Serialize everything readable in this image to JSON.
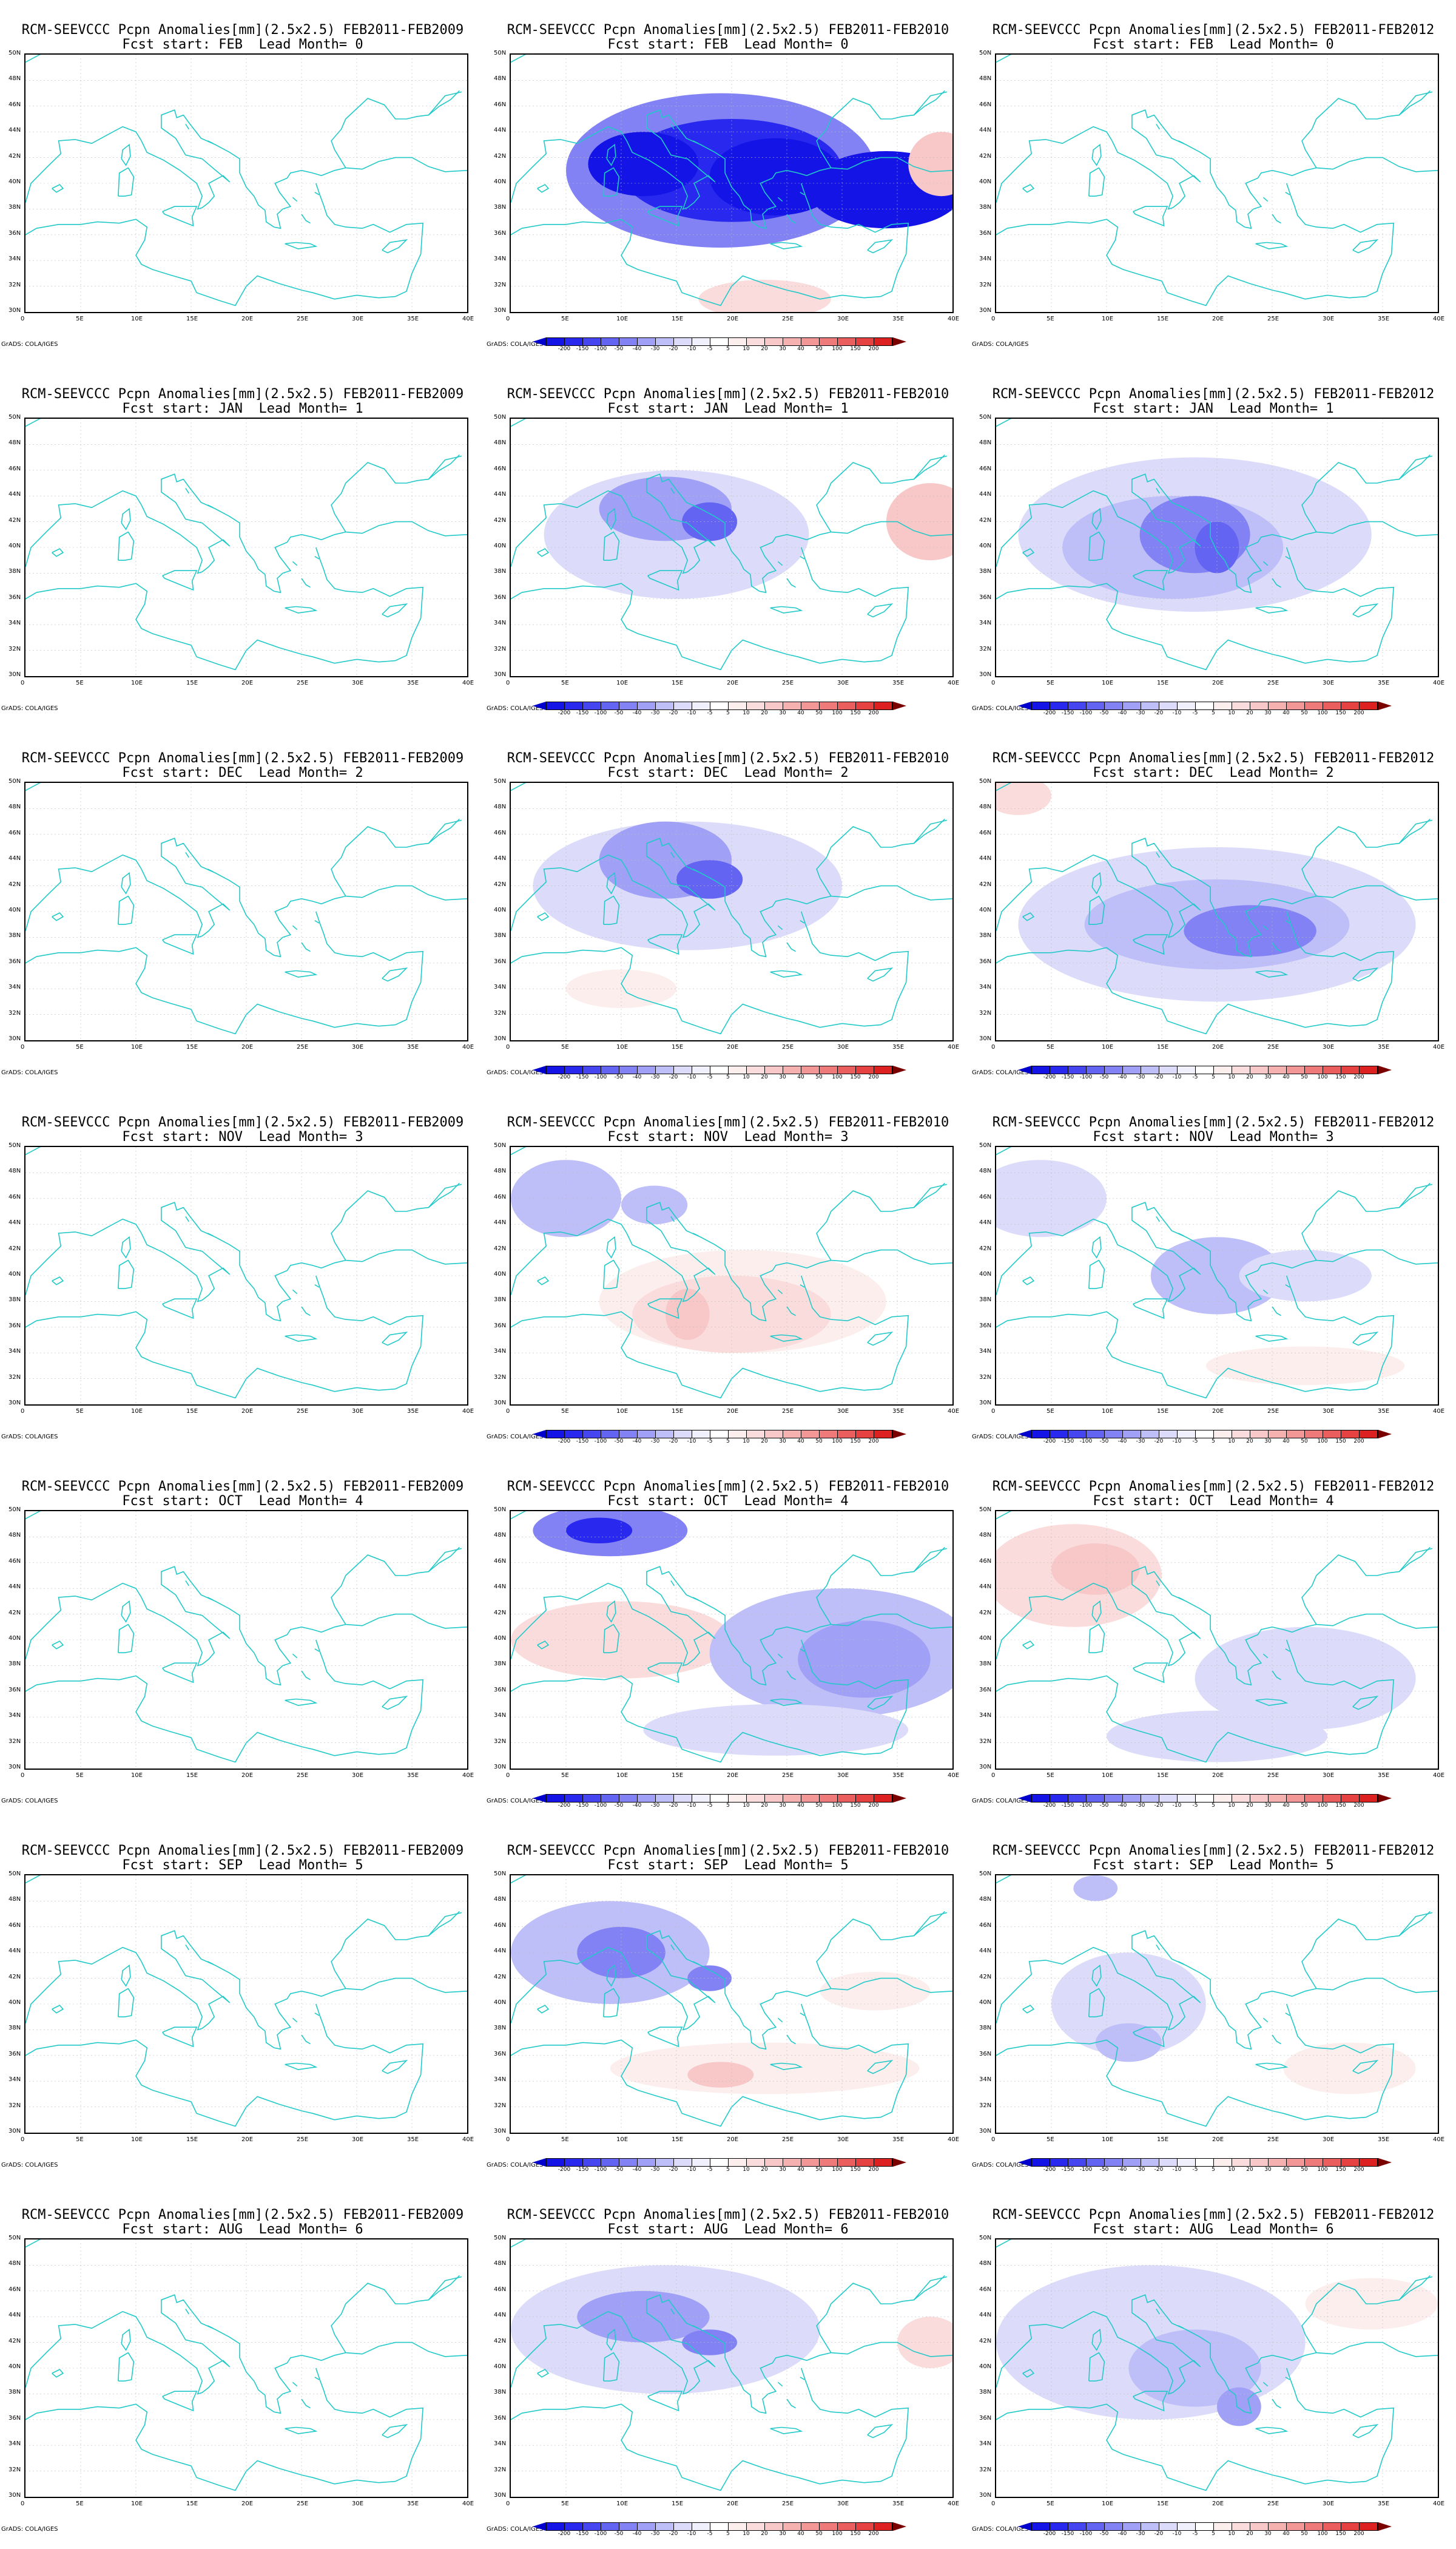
{
  "colors": {
    "coast": "#22c9c9",
    "frame": "#000000",
    "scale": [
      "#0000cc",
      "#1414e6",
      "#2828ee",
      "#4646f0",
      "#6464f2",
      "#8282f4",
      "#a0a0f6",
      "#bebef8",
      "#dcdcfa",
      "#f0f0fc",
      "#ffffff",
      "#fdeeee",
      "#fbdcdc",
      "#f8c8c8",
      "#f5b0b0",
      "#f29696",
      "#ee7a7a",
      "#ea5e5e",
      "#e64242",
      "#dd2020",
      "#c00000"
    ]
  },
  "legend": {
    "labels": [
      "-200",
      "-150",
      "-100",
      "-50",
      "-40",
      "-30",
      "-20",
      "-10",
      "-5",
      "5",
      "10",
      "20",
      "30",
      "40",
      "50",
      "100",
      "150",
      "200"
    ]
  },
  "axes": {
    "lat_labels": [
      "50N",
      "48N",
      "46N",
      "44N",
      "42N",
      "40N",
      "38N",
      "36N",
      "34N",
      "32N",
      "30N"
    ],
    "lon_labels": [
      "0",
      "5E",
      "10E",
      "15E",
      "20E",
      "25E",
      "30E",
      "35E",
      "40E"
    ]
  },
  "footer_text": "GrADS: COLA/IGES",
  "columns": [
    {
      "title": "RCM-SEEVCCC Pcpn Anomalies[mm](2.5x2.5) FEB2011-FEB2009"
    },
    {
      "title": "RCM-SEEVCCC Pcpn Anomalies[mm](2.5x2.5) FEB2011-FEB2010"
    },
    {
      "title": "RCM-SEEVCCC Pcpn Anomalies[mm](2.5x2.5) FEB2011-FEB2012"
    }
  ],
  "rows": [
    {
      "subtitle": "Fcst start: FEB  Lead Month= 0"
    },
    {
      "subtitle": "Fcst start: JAN  Lead Month= 1"
    },
    {
      "subtitle": "Fcst start: DEC  Lead Month= 2"
    },
    {
      "subtitle": "Fcst start: NOV  Lead Month= 3"
    },
    {
      "subtitle": "Fcst start: OCT  Lead Month= 4"
    },
    {
      "subtitle": "Fcst start: SEP  Lead Month= 5"
    },
    {
      "subtitle": "Fcst start: AUG  Lead Month= 6"
    }
  ],
  "panels": {
    "0": [
      {
        "col": 0,
        "anomalies": [],
        "colorbar": false
      },
      {
        "col": 1,
        "colorbar": true,
        "anomalies": [
          {
            "lon": 19,
            "lat": 41,
            "rx": 14,
            "ry": 6,
            "level": -40
          },
          {
            "lon": 20,
            "lat": 41,
            "rx": 10,
            "ry": 4,
            "level": -100
          },
          {
            "lon": 12,
            "lat": 41.5,
            "rx": 5,
            "ry": 2.5,
            "level": -150
          },
          {
            "lon": 24,
            "lat": 40.5,
            "rx": 6,
            "ry": 3,
            "level": -150
          },
          {
            "lon": 34,
            "lat": 39.5,
            "rx": 7,
            "ry": 3,
            "level": -150
          },
          {
            "lon": 39,
            "lat": 41.5,
            "rx": 3,
            "ry": 2.5,
            "level": 20
          },
          {
            "lon": 23,
            "lat": 31,
            "rx": 6,
            "ry": 1.5,
            "level": 10
          }
        ]
      },
      {
        "col": 2,
        "anomalies": [],
        "colorbar": false
      }
    ],
    "1": [
      {
        "col": 0,
        "anomalies": [],
        "colorbar": false
      },
      {
        "col": 1,
        "colorbar": true,
        "anomalies": [
          {
            "lon": 15,
            "lat": 41,
            "rx": 12,
            "ry": 5,
            "level": -10
          },
          {
            "lon": 14,
            "lat": 43,
            "rx": 6,
            "ry": 2.5,
            "level": -30
          },
          {
            "lon": 18,
            "lat": 42,
            "rx": 2.5,
            "ry": 1.5,
            "level": -50
          },
          {
            "lon": 38,
            "lat": 42,
            "rx": 4,
            "ry": 3,
            "level": 20
          }
        ]
      },
      {
        "col": 2,
        "colorbar": true,
        "anomalies": [
          {
            "lon": 18,
            "lat": 41,
            "rx": 16,
            "ry": 6,
            "level": -10
          },
          {
            "lon": 16,
            "lat": 40,
            "rx": 10,
            "ry": 4,
            "level": -20
          },
          {
            "lon": 18,
            "lat": 41,
            "rx": 5,
            "ry": 3,
            "level": -40
          },
          {
            "lon": 20,
            "lat": 40,
            "rx": 2,
            "ry": 2,
            "level": -50
          }
        ]
      }
    ],
    "2": [
      {
        "col": 0,
        "anomalies": [],
        "colorbar": false
      },
      {
        "col": 1,
        "colorbar": true,
        "anomalies": [
          {
            "lon": 16,
            "lat": 42,
            "rx": 14,
            "ry": 5,
            "level": -10
          },
          {
            "lon": 14,
            "lat": 44,
            "rx": 6,
            "ry": 3,
            "level": -30
          },
          {
            "lon": 18,
            "lat": 42.5,
            "rx": 3,
            "ry": 1.5,
            "level": -50
          },
          {
            "lon": 10,
            "lat": 34,
            "rx": 5,
            "ry": 1.5,
            "level": 5
          }
        ]
      },
      {
        "col": 2,
        "colorbar": true,
        "anomalies": [
          {
            "lon": 20,
            "lat": 39,
            "rx": 18,
            "ry": 6,
            "level": -10
          },
          {
            "lon": 20,
            "lat": 39,
            "rx": 12,
            "ry": 3.5,
            "level": -20
          },
          {
            "lon": 23,
            "lat": 38.5,
            "rx": 6,
            "ry": 2,
            "level": -40
          },
          {
            "lon": 2,
            "lat": 49,
            "rx": 3,
            "ry": 1.5,
            "level": 10
          }
        ]
      }
    ],
    "3": [
      {
        "col": 0,
        "anomalies": [],
        "colorbar": false
      },
      {
        "col": 1,
        "colorbar": true,
        "anomalies": [
          {
            "lon": 5,
            "lat": 46,
            "rx": 5,
            "ry": 3,
            "level": -20
          },
          {
            "lon": 13,
            "lat": 45.5,
            "rx": 3,
            "ry": 1.5,
            "level": -20
          },
          {
            "lon": 21,
            "lat": 38,
            "rx": 13,
            "ry": 4,
            "level": 5
          },
          {
            "lon": 20,
            "lat": 37,
            "rx": 9,
            "ry": 3,
            "level": 10
          },
          {
            "lon": 16,
            "lat": 37,
            "rx": 2,
            "ry": 2,
            "level": 20
          }
        ]
      },
      {
        "col": 2,
        "colorbar": true,
        "anomalies": [
          {
            "lon": 4,
            "lat": 46,
            "rx": 6,
            "ry": 3,
            "level": -10
          },
          {
            "lon": 20,
            "lat": 40,
            "rx": 6,
            "ry": 3,
            "level": -20
          },
          {
            "lon": 28,
            "lat": 40,
            "rx": 6,
            "ry": 2,
            "level": -10
          },
          {
            "lon": 28,
            "lat": 33,
            "rx": 9,
            "ry": 1.5,
            "level": 5
          }
        ]
      }
    ],
    "4": [
      {
        "col": 0,
        "anomalies": [],
        "colorbar": false
      },
      {
        "col": 1,
        "colorbar": true,
        "anomalies": [
          {
            "lon": 9,
            "lat": 48.5,
            "rx": 7,
            "ry": 2,
            "level": -40
          },
          {
            "lon": 8,
            "lat": 48.5,
            "rx": 3,
            "ry": 1,
            "level": -100
          },
          {
            "lon": 10,
            "lat": 40,
            "rx": 10,
            "ry": 3,
            "level": 10
          },
          {
            "lon": 30,
            "lat": 39,
            "rx": 12,
            "ry": 5,
            "level": -20
          },
          {
            "lon": 32,
            "lat": 38.5,
            "rx": 6,
            "ry": 3,
            "level": -30
          },
          {
            "lon": 24,
            "lat": 33,
            "rx": 12,
            "ry": 2,
            "level": -10
          }
        ]
      },
      {
        "col": 2,
        "colorbar": true,
        "anomalies": [
          {
            "lon": 7,
            "lat": 45,
            "rx": 8,
            "ry": 4,
            "level": 10
          },
          {
            "lon": 9,
            "lat": 45.5,
            "rx": 4,
            "ry": 2,
            "level": 20
          },
          {
            "lon": 28,
            "lat": 37,
            "rx": 10,
            "ry": 4,
            "level": -10
          },
          {
            "lon": 20,
            "lat": 32.5,
            "rx": 10,
            "ry": 2,
            "level": -10
          }
        ]
      }
    ],
    "5": [
      {
        "col": 0,
        "anomalies": [],
        "colorbar": false
      },
      {
        "col": 1,
        "colorbar": true,
        "anomalies": [
          {
            "lon": 9,
            "lat": 44,
            "rx": 9,
            "ry": 4,
            "level": -20
          },
          {
            "lon": 10,
            "lat": 44,
            "rx": 4,
            "ry": 2,
            "level": -40
          },
          {
            "lon": 18,
            "lat": 42,
            "rx": 2,
            "ry": 1,
            "level": -40
          },
          {
            "lon": 23,
            "lat": 35,
            "rx": 14,
            "ry": 2,
            "level": 5
          },
          {
            "lon": 19,
            "lat": 34.5,
            "rx": 3,
            "ry": 1,
            "level": 20
          },
          {
            "lon": 33,
            "lat": 41,
            "rx": 5,
            "ry": 1.5,
            "level": 5
          }
        ]
      },
      {
        "col": 2,
        "colorbar": true,
        "anomalies": [
          {
            "lon": 9,
            "lat": 49,
            "rx": 2,
            "ry": 1,
            "level": -20
          },
          {
            "lon": 12,
            "lat": 40,
            "rx": 7,
            "ry": 4,
            "level": -10
          },
          {
            "lon": 12,
            "lat": 37,
            "rx": 3,
            "ry": 1.5,
            "level": -20
          },
          {
            "lon": 32,
            "lat": 35,
            "rx": 6,
            "ry": 2,
            "level": 5
          }
        ]
      }
    ],
    "6": [
      {
        "col": 0,
        "anomalies": [],
        "colorbar": false
      },
      {
        "col": 1,
        "colorbar": true,
        "anomalies": [
          {
            "lon": 14,
            "lat": 43,
            "rx": 14,
            "ry": 5,
            "level": -10
          },
          {
            "lon": 12,
            "lat": 44,
            "rx": 6,
            "ry": 2,
            "level": -30
          },
          {
            "lon": 18,
            "lat": 42,
            "rx": 2.5,
            "ry": 1,
            "level": -40
          },
          {
            "lon": 38,
            "lat": 42,
            "rx": 3,
            "ry": 2,
            "level": 10
          }
        ]
      },
      {
        "col": 2,
        "colorbar": true,
        "anomalies": [
          {
            "lon": 14,
            "lat": 42,
            "rx": 14,
            "ry": 6,
            "level": -10
          },
          {
            "lon": 18,
            "lat": 40,
            "rx": 6,
            "ry": 3,
            "level": -20
          },
          {
            "lon": 22,
            "lat": 37,
            "rx": 2,
            "ry": 1.5,
            "level": -30
          },
          {
            "lon": 34,
            "lat": 45,
            "rx": 6,
            "ry": 2,
            "level": 5
          }
        ]
      }
    ]
  }
}
